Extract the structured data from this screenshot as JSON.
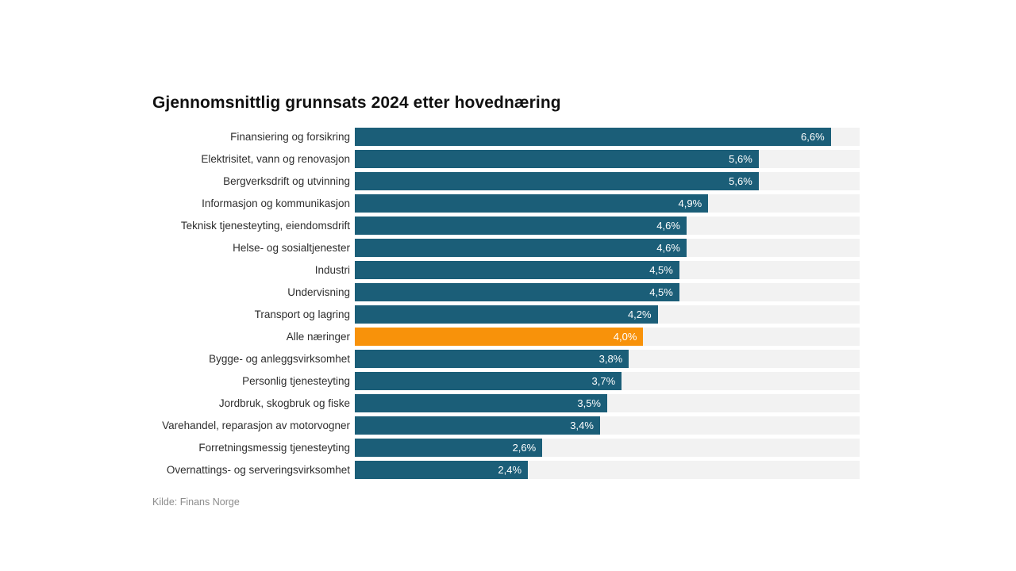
{
  "title": "Gjennomsnittlig grunnsats 2024 etter hovednæring",
  "source": "Kilde: Finans Norge",
  "colors": {
    "bar": "#1b5e78",
    "highlight_bar": "#f8920a",
    "track": "#f2f2f2",
    "title_text": "#111111",
    "category_text": "#2e2e2e",
    "value_text": "#ffffff",
    "source_text": "#8c8c8c"
  },
  "chart_data": {
    "type": "bar",
    "orientation": "horizontal",
    "title": "Gjennomsnittlig grunnsats 2024 etter hovednæring",
    "xlabel": "",
    "ylabel": "",
    "xlim": [
      0,
      7
    ],
    "grid": false,
    "legend": "none",
    "value_suffix": "%",
    "decimal_separator": ",",
    "categories": [
      "Finansiering og forsikring",
      "Elektrisitet, vann og renovasjon",
      "Bergverksdrift og utvinning",
      "Informasjon og kommunikasjon",
      "Teknisk tjenesteyting, eiendomsdrift",
      "Helse- og sosialtjenester",
      "Industri",
      "Undervisning",
      "Transport og lagring",
      "Alle næringer",
      "Bygge- og anleggsvirksomhet",
      "Personlig tjenesteyting",
      "Jordbruk, skogbruk og fiske",
      "Varehandel, reparasjon av motorvogner",
      "Forretningsmessig tjenesteyting",
      "Overnattings- og serveringsvirksomhet"
    ],
    "values": [
      6.6,
      5.6,
      5.6,
      4.9,
      4.6,
      4.6,
      4.5,
      4.5,
      4.2,
      4.0,
      3.8,
      3.7,
      3.5,
      3.4,
      2.6,
      2.4
    ],
    "value_labels": [
      "6,6%",
      "5,6%",
      "5,6%",
      "4,9%",
      "4,6%",
      "4,6%",
      "4,5%",
      "4,5%",
      "4,2%",
      "4,0%",
      "3,8%",
      "3,7%",
      "3,5%",
      "3,4%",
      "2,6%",
      "2,4%"
    ],
    "highlight_category": "Alle næringer",
    "highlight_index": 9
  }
}
